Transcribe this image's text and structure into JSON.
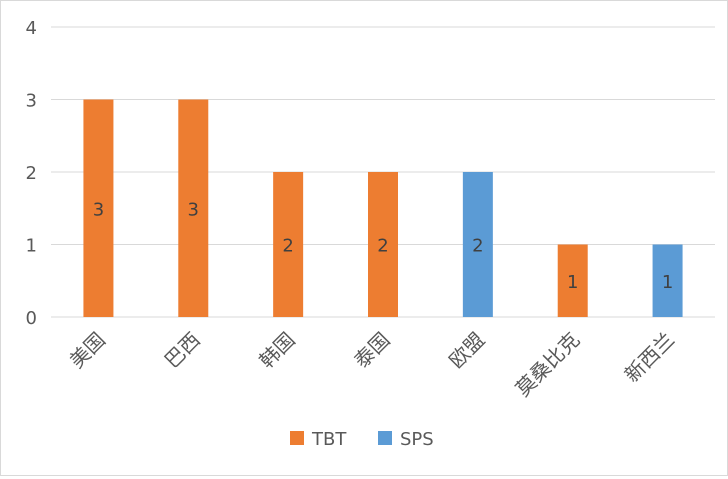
{
  "chart_data": {
    "type": "bar",
    "title": "",
    "xlabel": "",
    "ylabel": "",
    "categories": [
      "美国",
      "巴西",
      "韩国",
      "泰国",
      "欧盟",
      "莫桑比克",
      "新西兰"
    ],
    "values": [
      3,
      3,
      2,
      2,
      2,
      1,
      1
    ],
    "series_of_bar": [
      "TBT",
      "TBT",
      "TBT",
      "TBT",
      "SPS",
      "TBT",
      "SPS"
    ],
    "series": [
      {
        "name": "TBT",
        "color": "#ED7D31"
      },
      {
        "name": "SPS",
        "color": "#5B9BD5"
      }
    ],
    "ylim": [
      0,
      4
    ],
    "yticks": [
      0,
      1,
      2,
      3,
      4
    ],
    "grid": true,
    "legend": "bottom"
  }
}
